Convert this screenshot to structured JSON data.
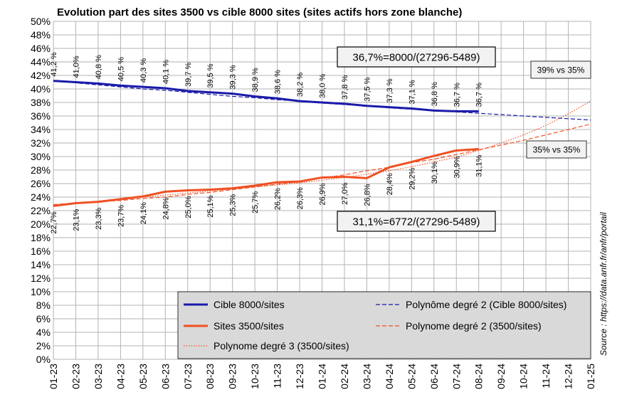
{
  "chart_data": {
    "type": "line",
    "title": "Evolution part des sites 3500 vs cible 8000 sites (sites actifs hors zone blanche)",
    "categories": [
      "01-23",
      "02-23",
      "03-23",
      "04-23",
      "05-23",
      "06-23",
      "07-23",
      "08-23",
      "09-23",
      "10-23",
      "11-23",
      "12-23",
      "01-24",
      "02-24",
      "03-24",
      "04-24",
      "05-24",
      "06-24",
      "07-24",
      "08-24",
      "09-24",
      "10-24",
      "11-24",
      "12-24",
      "01-25"
    ],
    "ylim": [
      0,
      50
    ],
    "yticks": [
      {
        "value": 0,
        "label": "0%"
      },
      {
        "value": 2,
        "label": "2%"
      },
      {
        "value": 4,
        "label": "4%"
      },
      {
        "value": 6,
        "label": "6%"
      },
      {
        "value": 8,
        "label": "8%"
      },
      {
        "value": 10,
        "label": "10%"
      },
      {
        "value": 12,
        "label": "12%"
      },
      {
        "value": 14,
        "label": "14%"
      },
      {
        "value": 16,
        "label": "16%"
      },
      {
        "value": 18,
        "label": "18%"
      },
      {
        "value": 20,
        "label": "20%"
      },
      {
        "value": 22,
        "label": "22%"
      },
      {
        "value": 24,
        "label": "24%"
      },
      {
        "value": 26,
        "label": "26%"
      },
      {
        "value": 28,
        "label": "28%"
      },
      {
        "value": 30,
        "label": "30%"
      },
      {
        "value": 32,
        "label": "32%"
      },
      {
        "value": 34,
        "label": "34%"
      },
      {
        "value": 36,
        "label": "36%"
      },
      {
        "value": 38,
        "label": "38%"
      },
      {
        "value": 40,
        "label": "40%"
      },
      {
        "value": 42,
        "label": "42%"
      },
      {
        "value": 44,
        "label": "44%"
      },
      {
        "value": 46,
        "label": "46%"
      },
      {
        "value": 48,
        "label": "48%"
      },
      {
        "value": 50,
        "label": "50%"
      }
    ],
    "grid": true,
    "series": [
      {
        "name": "Cible 8000/sites",
        "color": "#1a1aaa",
        "style": "solid",
        "label_side": "above",
        "values": [
          41.2,
          41.0,
          40.8,
          40.5,
          40.3,
          40.1,
          39.7,
          39.5,
          39.3,
          38.9,
          38.6,
          38.2,
          38.0,
          37.8,
          37.5,
          37.3,
          37.1,
          36.8,
          36.7,
          36.7,
          null,
          null,
          null,
          null,
          null
        ],
        "value_labels": [
          "41,2 %",
          "41,0%",
          "40,8 %",
          "40,5 %",
          "40,3 %",
          "40,1 %",
          "39,7 %",
          "39,5 %",
          "39,3 %",
          "38,9 %",
          "38,6 %",
          "38,2 %",
          "38,0 %",
          "37,8 %",
          "37,5 %",
          "37,3 %",
          "37,1 %",
          "36,8 %",
          "36,7 %",
          "36,7 %",
          null,
          null,
          null,
          null,
          null
        ]
      },
      {
        "name": "Polynôme degré 2 (Cible 8000/sites)",
        "color": "#1a1aaa",
        "style": "dashed",
        "values": [
          41.2,
          40.9,
          40.6,
          40.3,
          40.0,
          39.8,
          39.5,
          39.2,
          38.9,
          38.7,
          38.4,
          38.2,
          37.9,
          37.7,
          37.5,
          37.2,
          37.0,
          36.8,
          36.6,
          36.4,
          36.2,
          36.0,
          35.8,
          35.6,
          35.4
        ]
      },
      {
        "name": "Sites 3500/sites",
        "color": "#f05022",
        "style": "solid",
        "label_side": "below",
        "values": [
          22.7,
          23.1,
          23.3,
          23.7,
          24.1,
          24.8,
          25.0,
          25.1,
          25.3,
          25.7,
          26.2,
          26.3,
          26.9,
          27.0,
          26.8,
          28.4,
          29.2,
          30.1,
          30.9,
          31.1,
          null,
          null,
          null,
          null,
          null
        ],
        "value_labels": [
          "22,7%",
          "23,1%",
          "23,3%",
          "23,7%",
          "24,1%",
          "24,8%",
          "25,0%",
          "25,1%",
          "25,3%",
          "25,7%",
          "26,2%",
          "26,3%",
          "26,9%",
          "27,0%",
          "26,8%",
          "28,4%",
          "29,2%",
          "30,1%",
          "30,9%",
          "31,1%",
          null,
          null,
          null,
          null,
          null
        ]
      },
      {
        "name": "Polynome degré 2 (3500/sites)",
        "color": "#f05022",
        "style": "dashed",
        "values": [
          22.9,
          23.1,
          23.3,
          23.5,
          23.8,
          24.0,
          24.4,
          24.7,
          25.1,
          25.5,
          25.9,
          26.3,
          26.8,
          27.3,
          27.9,
          28.4,
          29.1,
          29.6,
          30.3,
          31.0,
          31.7,
          32.4,
          33.2,
          34.0,
          34.8
        ]
      },
      {
        "name": "Polynome degré 3 (3500/sites)",
        "color": "#f05022",
        "style": "dotted",
        "values": [
          22.7,
          23.0,
          23.4,
          23.7,
          24.0,
          24.3,
          24.6,
          24.9,
          25.2,
          25.5,
          25.8,
          26.1,
          26.5,
          26.9,
          27.4,
          27.9,
          28.5,
          29.2,
          29.9,
          30.9,
          32.0,
          33.2,
          34.6,
          36.3,
          38.2
        ]
      }
    ],
    "annotations": [
      "36,7%=8000/(27296-5489)",
      "31,1%=6772/(27296-5489)",
      "39% vs 35%",
      "35% vs 35%"
    ],
    "source": "Source : https://data.anfr.fr/anfr/portail"
  }
}
